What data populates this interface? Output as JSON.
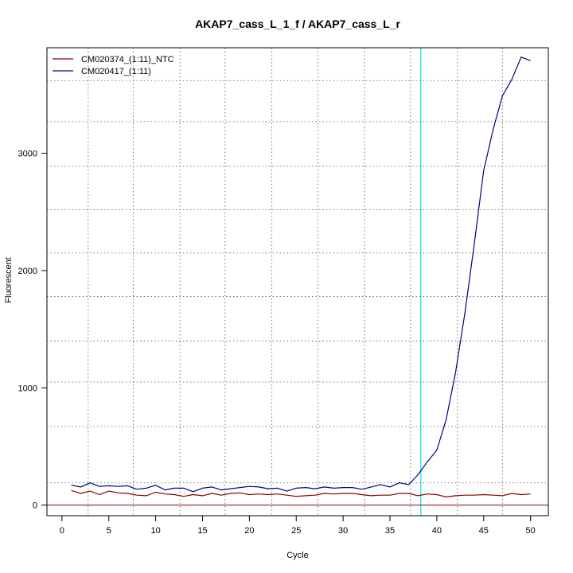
{
  "chart_data": {
    "type": "line",
    "title": "AKAP7_cass_L_1_f / AKAP7_cass_L_r",
    "xlabel": "Cycle",
    "ylabel": "Fluorescent",
    "xlim": [
      -1.6,
      51.9
    ],
    "ylim": [
      -90,
      3900
    ],
    "xticks": [
      0,
      5,
      10,
      15,
      20,
      25,
      30,
      35,
      40,
      45,
      50
    ],
    "yticks": [
      0,
      1000,
      2000,
      3000
    ],
    "x_grid": [
      2.8,
      7.6,
      12.6,
      17.4,
      22.4,
      27.3,
      32.3,
      37.2,
      42.2,
      47.0
    ],
    "y_grid": [
      190,
      670,
      1050,
      1400,
      1780,
      2150,
      2520,
      2890,
      3270,
      3620
    ],
    "threshold": {
      "axis": "x",
      "value": 38.3,
      "color": "#00e0e0"
    },
    "baseline": {
      "axis": "y",
      "value": 0,
      "color": "#8b0000"
    },
    "legend_position": "top-left",
    "series": [
      {
        "name": "CM020374_(1:11)_NTC",
        "color": "#8b0000",
        "x": [
          1,
          2,
          3,
          4,
          5,
          6,
          7,
          8,
          9,
          10,
          11,
          12,
          13,
          14,
          15,
          16,
          17,
          18,
          19,
          20,
          21,
          22,
          23,
          24,
          25,
          26,
          27,
          28,
          29,
          30,
          31,
          32,
          33,
          34,
          35,
          36,
          37,
          38,
          39,
          40,
          41,
          42,
          43,
          44,
          45,
          46,
          47,
          48,
          49,
          50
        ],
        "values": [
          125,
          100,
          120,
          90,
          120,
          105,
          100,
          85,
          80,
          110,
          95,
          90,
          75,
          90,
          80,
          100,
          85,
          100,
          105,
          90,
          95,
          90,
          95,
          85,
          75,
          80,
          85,
          100,
          95,
          100,
          100,
          90,
          80,
          85,
          85,
          100,
          100,
          80,
          95,
          90,
          70,
          80,
          85,
          85,
          90,
          85,
          80,
          100,
          90,
          95
        ]
      },
      {
        "name": "CM020417_(1:11)",
        "color": "#00007f",
        "x": [
          1,
          2,
          3,
          4,
          5,
          6,
          7,
          8,
          9,
          10,
          11,
          12,
          13,
          14,
          15,
          16,
          17,
          18,
          19,
          20,
          21,
          22,
          23,
          24,
          25,
          26,
          27,
          28,
          29,
          30,
          31,
          32,
          33,
          34,
          35,
          36,
          37,
          38,
          39,
          40,
          41,
          42,
          43,
          44,
          45,
          46,
          47,
          48,
          49,
          50
        ],
        "values": [
          170,
          155,
          190,
          160,
          165,
          160,
          165,
          135,
          145,
          170,
          130,
          145,
          145,
          115,
          145,
          155,
          130,
          140,
          150,
          160,
          155,
          140,
          145,
          120,
          145,
          150,
          140,
          155,
          145,
          150,
          150,
          135,
          155,
          175,
          155,
          190,
          175,
          260,
          370,
          470,
          730,
          1130,
          1640,
          2230,
          2850,
          3200,
          3490,
          3630,
          3820,
          3790
        ]
      }
    ]
  }
}
